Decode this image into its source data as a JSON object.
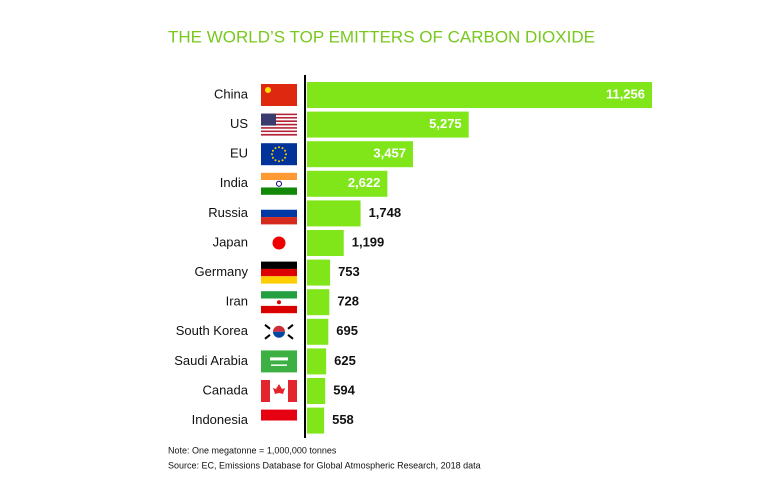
{
  "chart_data": {
    "type": "bar",
    "orientation": "horizontal",
    "title": "THE WORLD’S TOP EMITTERS OF CARBON DIOXIDE",
    "categories": [
      "China",
      "US",
      "EU",
      "India",
      "Russia",
      "Japan",
      "Germany",
      "Iran",
      "South Korea",
      "Saudi Arabia",
      "Canada",
      "Indonesia"
    ],
    "values": [
      11256,
      5275,
      3457,
      2622,
      1748,
      1199,
      753,
      728,
      695,
      625,
      594,
      558
    ],
    "value_labels": [
      "11,256",
      "5,275",
      "3,457",
      "2,622",
      "1,748",
      "1,199",
      "753",
      "728",
      "695",
      "625",
      "594",
      "558"
    ],
    "color": "#80e61a",
    "note": "Note: One megatonne = 1,000,000 tonnes",
    "source": "Source: EC, Emissions Database for Global Atmospheric Research, 2018 data"
  }
}
